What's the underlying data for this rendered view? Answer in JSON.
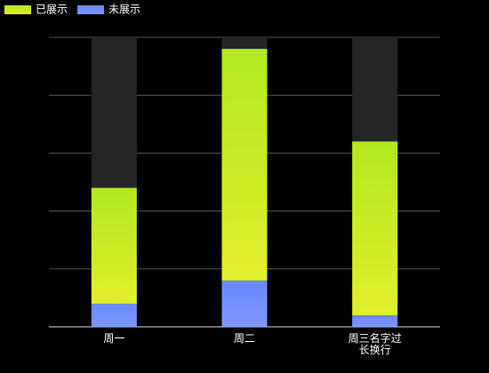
{
  "chart_data": {
    "type": "stacked_bar",
    "categories": [
      "周一",
      "周二",
      "周三名字过长换行"
    ],
    "series": [
      {
        "name": "未展示",
        "color": "#6e8cff",
        "values": [
          8,
          16,
          4
        ]
      },
      {
        "name": "已展示",
        "color": "#c4ea1f",
        "values": [
          40,
          80,
          60
        ]
      }
    ],
    "ylim": [
      0,
      100
    ],
    "yticks": [
      0,
      20,
      40,
      60,
      80,
      100
    ],
    "grid": true,
    "legend": "top-left",
    "background_bar_color": "#262626"
  }
}
